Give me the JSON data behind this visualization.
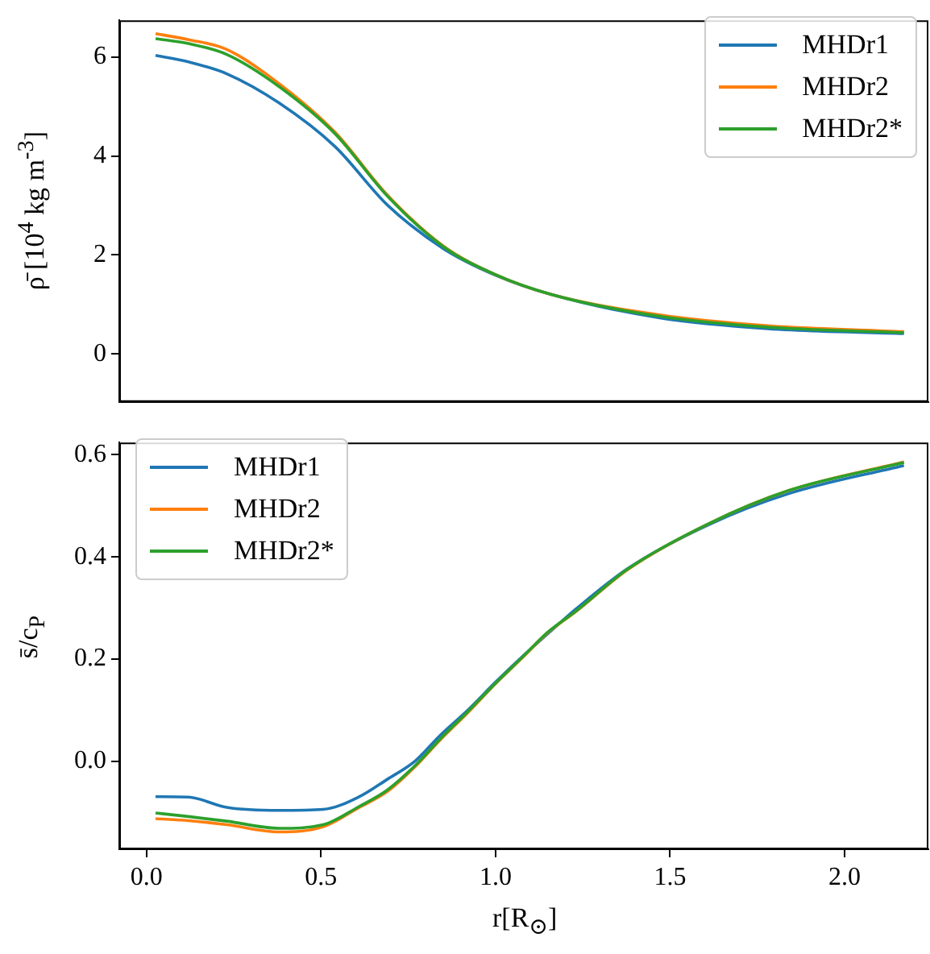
{
  "chart_data": [
    {
      "type": "line",
      "ylabel": "ρ̄ [10$^{4}$ kg m$^{-3}$]",
      "x": [
        0.026,
        0.12,
        0.23,
        0.38,
        0.54,
        0.69,
        0.85,
        1.0,
        1.16,
        1.47,
        1.78,
        2.17
      ],
      "xlim": [
        -0.078,
        2.24
      ],
      "ylim": [
        -0.97,
        6.74
      ],
      "yticks": [
        0,
        2,
        4,
        6
      ],
      "legend": "top right",
      "tick_labels": "y",
      "series": [
        {
          "name": "MHDr1",
          "color": "#1f77b4",
          "values": [
            6.03,
            5.9,
            5.66,
            5.07,
            4.19,
            3.01,
            2.13,
            1.59,
            1.2,
            0.73,
            0.51,
            0.41
          ]
        },
        {
          "name": "MHDr2",
          "color": "#ff7f0e",
          "values": [
            6.47,
            6.35,
            6.15,
            5.46,
            4.48,
            3.21,
            2.18,
            1.6,
            1.2,
            0.79,
            0.57,
            0.45
          ]
        },
        {
          "name": "MHDr2*",
          "color": "#2ca02c",
          "values": [
            6.37,
            6.27,
            6.05,
            5.4,
            4.45,
            3.19,
            2.17,
            1.6,
            1.2,
            0.76,
            0.54,
            0.43
          ]
        }
      ]
    },
    {
      "type": "line",
      "xlabel": "r[R$_{⊙}$]",
      "ylabel": "s̄/c$_{P}$",
      "x": [
        0.026,
        0.12,
        0.23,
        0.38,
        0.506,
        0.61,
        0.69,
        0.77,
        0.84,
        0.92,
        1.0,
        1.08,
        1.15,
        1.23,
        1.38,
        1.61,
        1.84,
        2.17
      ],
      "xlim": [
        -0.078,
        2.24
      ],
      "ylim": [
        -0.172,
        0.624
      ],
      "xticks": [
        {
          "value": 0,
          "label": "0.0"
        },
        0.5,
        {
          "value": 1,
          "label": "1.0"
        },
        1.5,
        {
          "value": 2,
          "label": "2.0"
        }
      ],
      "yticks": [
        {
          "value": 0,
          "label": "0.0"
        },
        0.2,
        0.4,
        0.6
      ],
      "legend": "top left",
      "series": [
        {
          "name": "MHDr1",
          "color": "#1f77b4",
          "values": [
            -0.069,
            -0.07,
            -0.09,
            -0.096,
            -0.094,
            -0.069,
            -0.035,
            0.001,
            0.05,
            0.1,
            0.155,
            0.207,
            0.25,
            0.298,
            0.378,
            0.463,
            0.524,
            0.579
          ]
        },
        {
          "name": "MHDr2",
          "color": "#ff7f0e",
          "values": [
            -0.112,
            -0.116,
            -0.124,
            -0.138,
            -0.128,
            -0.09,
            -0.059,
            -0.01,
            0.041,
            0.095,
            0.152,
            0.205,
            0.252,
            0.293,
            0.376,
            0.465,
            0.53,
            0.586
          ]
        },
        {
          "name": "MHDr2*",
          "color": "#2ca02c",
          "values": [
            -0.101,
            -0.108,
            -0.117,
            -0.131,
            -0.124,
            -0.088,
            -0.056,
            -0.008,
            0.043,
            0.097,
            0.153,
            0.206,
            0.253,
            0.294,
            0.377,
            0.465,
            0.53,
            0.585
          ]
        }
      ]
    }
  ]
}
